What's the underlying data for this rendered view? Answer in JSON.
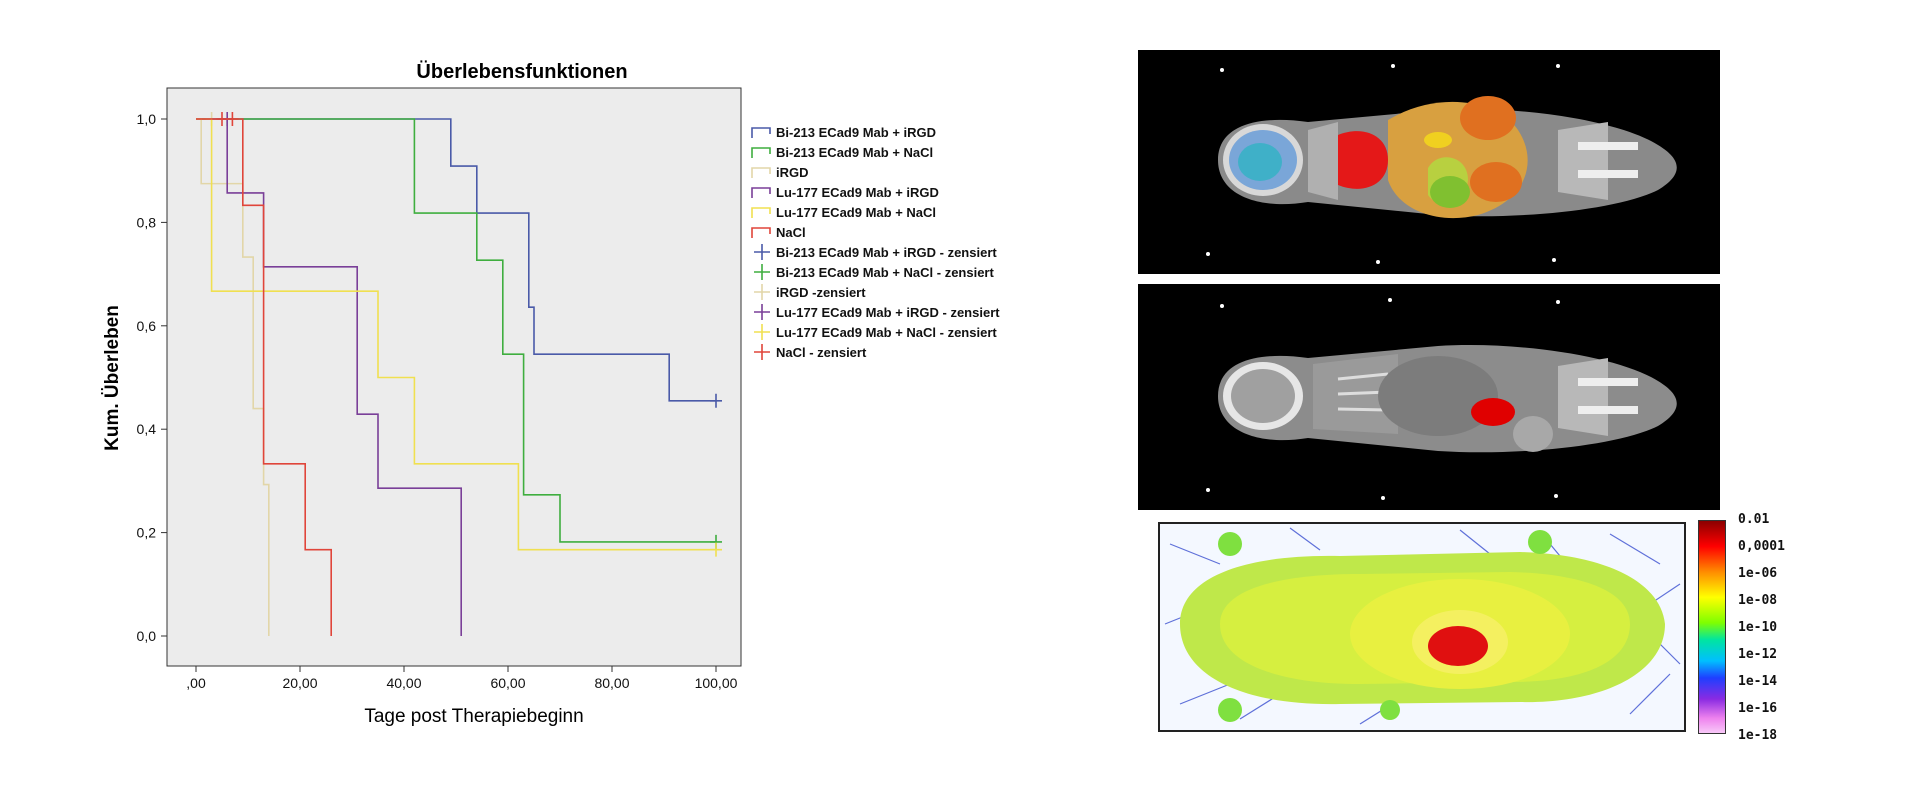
{
  "chart_data": {
    "type": "line",
    "subtype": "kaplan-meier step",
    "title": "Überlebensfunktionen",
    "xlabel": "Tage post Therapiebeginn",
    "ylabel": "Kum. Überleben",
    "xlim": [
      0,
      100
    ],
    "ylim": [
      0,
      1
    ],
    "x_ticks": [
      0,
      20,
      40,
      60,
      80,
      100
    ],
    "x_tick_labels": [
      ",00",
      "20,00",
      "40,00",
      "60,00",
      "80,00",
      "100,00"
    ],
    "y_ticks": [
      0,
      0.2,
      0.4,
      0.6,
      0.8,
      1.0
    ],
    "y_tick_labels": [
      "0,0",
      "0,2",
      "0,4",
      "0,6",
      "0,8",
      "1,0"
    ],
    "grid": false,
    "legend_position": "right",
    "background_color": "#ececec",
    "series": [
      {
        "name": "Bi-213 ECad9 Mab + iRGD",
        "color": "#4a5aa8",
        "steps": [
          [
            0,
            1.0
          ],
          [
            49,
            0.909
          ],
          [
            54,
            0.818
          ],
          [
            64,
            0.636
          ],
          [
            65,
            0.545
          ],
          [
            91,
            0.455
          ],
          [
            100,
            0.455
          ]
        ],
        "censored": [
          [
            100,
            0.455
          ]
        ]
      },
      {
        "name": "Bi-213 ECad9 Mab + NaCl",
        "color": "#3fae3f",
        "steps": [
          [
            0,
            1.0
          ],
          [
            42,
            0.818
          ],
          [
            54,
            0.727
          ],
          [
            59,
            0.545
          ],
          [
            63,
            0.273
          ],
          [
            70,
            0.182
          ],
          [
            100,
            0.182
          ]
        ],
        "censored": [
          [
            100,
            0.182
          ]
        ]
      },
      {
        "name": "iRGD",
        "color": "#e2d6a8",
        "steps": [
          [
            0,
            1.0
          ],
          [
            1,
            0.875
          ],
          [
            9,
            0.733
          ],
          [
            11,
            0.44
          ],
          [
            13,
            0.293
          ],
          [
            14,
            0.0
          ]
        ],
        "censored": [
          [
            3,
            1.0
          ]
        ]
      },
      {
        "name": "Lu-177 ECad9 Mab + iRGD",
        "color": "#7a3f98",
        "steps": [
          [
            0,
            1.0
          ],
          [
            6,
            0.857
          ],
          [
            13,
            0.714
          ],
          [
            31,
            0.429
          ],
          [
            35,
            0.286
          ],
          [
            51,
            0.0
          ]
        ],
        "censored": [
          [
            6,
            1.0
          ]
        ]
      },
      {
        "name": "Lu-177 ECad9 Mab + NaCl",
        "color": "#f0e050",
        "steps": [
          [
            0,
            1.0
          ],
          [
            3,
            0.667
          ],
          [
            35,
            0.5
          ],
          [
            42,
            0.333
          ],
          [
            62,
            0.167
          ],
          [
            100,
            0.167
          ]
        ],
        "censored": [
          [
            100,
            0.167
          ]
        ]
      },
      {
        "name": "NaCl",
        "color": "#e0453a",
        "steps": [
          [
            0,
            1.0
          ],
          [
            9,
            0.833
          ],
          [
            13,
            0.333
          ],
          [
            21,
            0.167
          ],
          [
            26,
            0.0
          ]
        ],
        "censored": [
          [
            5,
            1.0
          ],
          [
            7,
            1.0
          ]
        ]
      }
    ],
    "legend_entries": [
      "Bi-213 ECad9 Mab + iRGD",
      "Bi-213 ECad9 Mab + NaCl",
      "iRGD",
      "Lu-177 ECad9 Mab + iRGD",
      "Lu-177 ECad9 Mab + NaCl",
      "NaCl",
      "Bi-213 ECad9 Mab + iRGD - zensiert",
      "Bi-213 ECad9 Mab + NaCl - zensiert",
      "iRGD -zensiert",
      "Lu-177 ECad9 Mab + iRGD - zensiert",
      "Lu-177 ECad9 Mab + NaCl - zensiert",
      "NaCl - zensiert"
    ]
  },
  "colorbar": {
    "labels": [
      "0.01",
      "0,0001",
      "1e-06",
      "1e-08",
      "1e-10",
      "1e-12",
      "1e-14",
      "1e-16",
      "1e-18"
    ]
  },
  "images": {
    "top": "CT scan with colored organ segmentation",
    "middle": "CT scan with red highlighted region",
    "bottom": "dose distribution heat map"
  }
}
